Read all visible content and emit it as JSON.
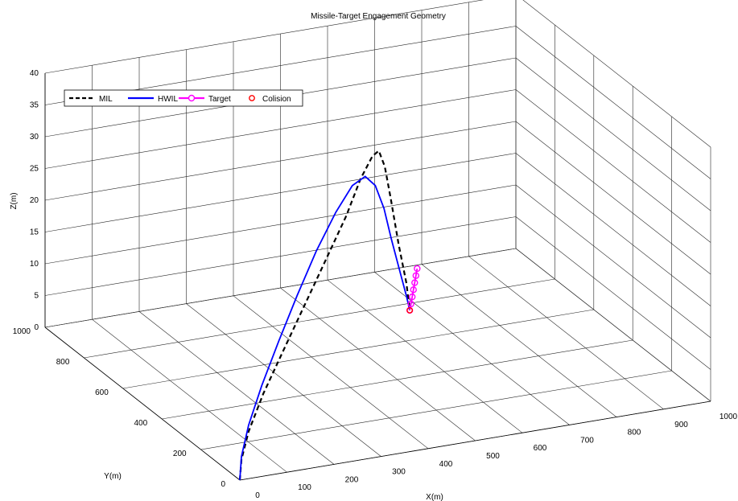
{
  "chart_data": {
    "type": "line",
    "projection": "3d",
    "title": "Missile-Target Engagement Geometry",
    "xlabel": "X(m)",
    "ylabel": "Y(m)",
    "zlabel": "Z(m)",
    "xlim": [
      0,
      1000
    ],
    "ylim": [
      0,
      1000
    ],
    "zlim": [
      0,
      40
    ],
    "xticks": [
      "0",
      "100",
      "200",
      "300",
      "400",
      "500",
      "600",
      "700",
      "800",
      "900",
      "1000"
    ],
    "yticks": [
      "0",
      "200",
      "400",
      "600",
      "800",
      "1000"
    ],
    "zticks": [
      "0",
      "5",
      "10",
      "15",
      "20",
      "25",
      "30",
      "35",
      "40"
    ],
    "grid": true,
    "legend_position": "top-left",
    "series": [
      {
        "name": "MIL",
        "color": "#000000",
        "style": "dashed",
        "points": [
          [
            0,
            0,
            0
          ],
          [
            20,
            40,
            2
          ],
          [
            60,
            100,
            4.5
          ],
          [
            120,
            170,
            8
          ],
          [
            190,
            240,
            12
          ],
          [
            270,
            320,
            16.5
          ],
          [
            350,
            400,
            21
          ],
          [
            420,
            470,
            25
          ],
          [
            480,
            540,
            28.5
          ],
          [
            530,
            600,
            30
          ],
          [
            560,
            640,
            29.5
          ],
          [
            585,
            670,
            26
          ],
          [
            610,
            700,
            20
          ],
          [
            635,
            720,
            12
          ],
          [
            660,
            740,
            5
          ],
          [
            672,
            752,
            0.3
          ]
        ]
      },
      {
        "name": "HWIL",
        "color": "#0000ff",
        "style": "solid",
        "points": [
          [
            0,
            0,
            0
          ],
          [
            20,
            40,
            2.5
          ],
          [
            60,
            100,
            5.5
          ],
          [
            115,
            165,
            9.5
          ],
          [
            180,
            235,
            14
          ],
          [
            250,
            310,
            18.5
          ],
          [
            320,
            380,
            23
          ],
          [
            390,
            450,
            26.5
          ],
          [
            450,
            510,
            28.5
          ],
          [
            500,
            565,
            28
          ],
          [
            540,
            610,
            25
          ],
          [
            575,
            650,
            20
          ],
          [
            605,
            685,
            14
          ],
          [
            635,
            715,
            8
          ],
          [
            660,
            740,
            3
          ],
          [
            672,
            752,
            0.3
          ]
        ]
      },
      {
        "name": "Target",
        "color": "#ff00ff",
        "style": "solid-marker",
        "points": [
          [
            672,
            752,
            0.3
          ],
          [
            680,
            765,
            0.9
          ],
          [
            688,
            778,
            1.6
          ],
          [
            696,
            791,
            2.3
          ],
          [
            704,
            804,
            3.0
          ],
          [
            712,
            817,
            3.7
          ],
          [
            720,
            830,
            4.4
          ]
        ]
      },
      {
        "name": "Colision",
        "color": "#ff0000",
        "style": "marker",
        "points": [
          [
            672,
            752,
            0.3
          ]
        ]
      }
    ]
  }
}
